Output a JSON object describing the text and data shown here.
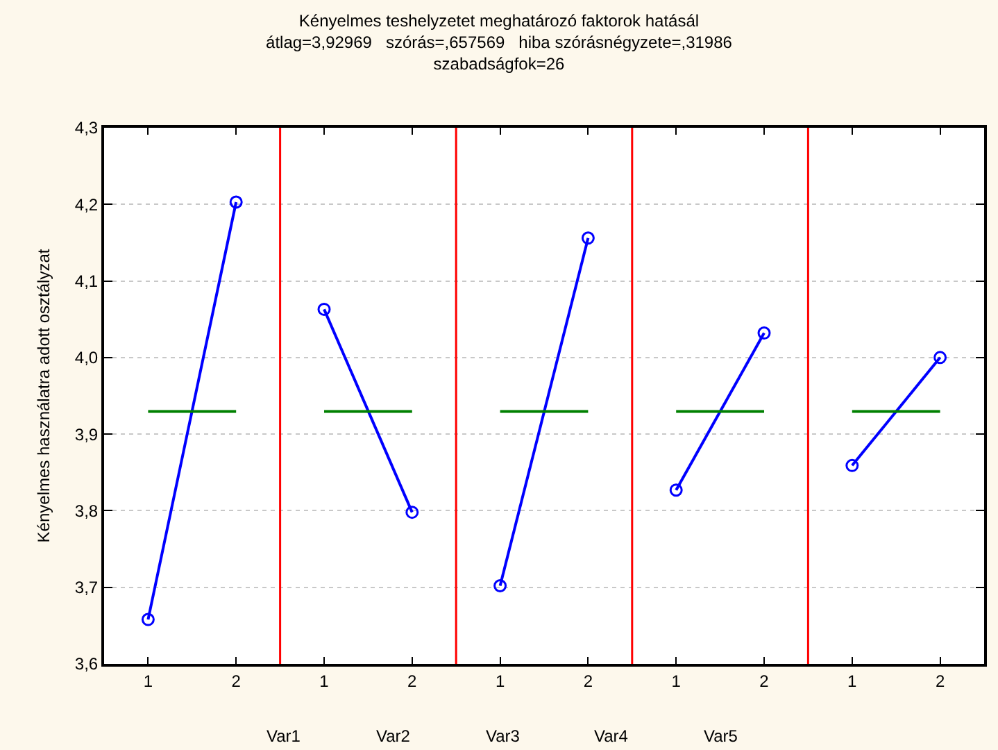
{
  "chart_data": {
    "type": "line",
    "title": "Kényelmes teshelyzetet meghatározó faktorok hatásál",
    "subtitle": "átlag=3,92969   szórás=,657569   hiba szórásnégyzete=,31986\nszabadságfok=26",
    "ylabel": "Kényelmes használatra adott osztályzat",
    "categories": [
      "1",
      "2",
      "1",
      "2",
      "1",
      "2",
      "1",
      "2",
      "1",
      "2"
    ],
    "marker": "circle",
    "grid": "y",
    "series": [
      {
        "color": "#0000ff",
        "values": [
          3.658,
          4.203,
          null,
          null,
          null,
          null,
          null,
          null,
          null,
          null
        ]
      },
      {
        "color": "#0000ff",
        "values": [
          null,
          null,
          4.063,
          3.798,
          null,
          null,
          null,
          null,
          null,
          null
        ]
      },
      {
        "color": "#0000ff",
        "values": [
          null,
          null,
          null,
          null,
          3.702,
          4.156,
          null,
          null,
          null,
          null
        ]
      },
      {
        "color": "#0000ff",
        "values": [
          null,
          null,
          null,
          null,
          null,
          null,
          3.827,
          4.032,
          null,
          null
        ]
      },
      {
        "color": "#0000ff",
        "values": [
          null,
          null,
          null,
          null,
          null,
          null,
          null,
          null,
          3.859,
          4.0
        ]
      },
      {
        "color": "#008000",
        "marker": "none",
        "values": [
          3.92969,
          3.92969,
          null,
          null,
          null,
          null,
          null,
          null,
          null,
          null
        ]
      },
      {
        "color": "#008000",
        "marker": "none",
        "values": [
          null,
          null,
          3.92969,
          3.92969,
          null,
          null,
          null,
          null,
          null,
          null
        ]
      },
      {
        "color": "#008000",
        "marker": "none",
        "values": [
          null,
          null,
          null,
          null,
          3.92969,
          3.92969,
          null,
          null,
          null,
          null
        ]
      },
      {
        "color": "#008000",
        "marker": "none",
        "values": [
          null,
          null,
          null,
          null,
          null,
          null,
          3.92969,
          3.92969,
          null,
          null
        ]
      },
      {
        "color": "#008000",
        "marker": "none",
        "values": [
          null,
          null,
          null,
          null,
          null,
          null,
          null,
          null,
          3.92969,
          3.92969
        ]
      }
    ],
    "annotations": [
      "Var1",
      "Var2",
      "Var3",
      "Var4",
      "Var5"
    ],
    "ylim": [
      3.6,
      4.3
    ],
    "yticks": [
      {
        "value": 3.6,
        "label": "3,6"
      },
      {
        "value": 3.7,
        "label": "3,7"
      },
      {
        "value": 3.8,
        "label": "3,8"
      },
      {
        "value": 3.9,
        "label": "3,9"
      },
      {
        "value": 4.0,
        "label": "4,0"
      },
      {
        "value": 4.1,
        "label": "4,1"
      },
      {
        "value": 4.2,
        "label": "4,2"
      },
      {
        "value": 4.3,
        "label": "4,3"
      }
    ]
  }
}
